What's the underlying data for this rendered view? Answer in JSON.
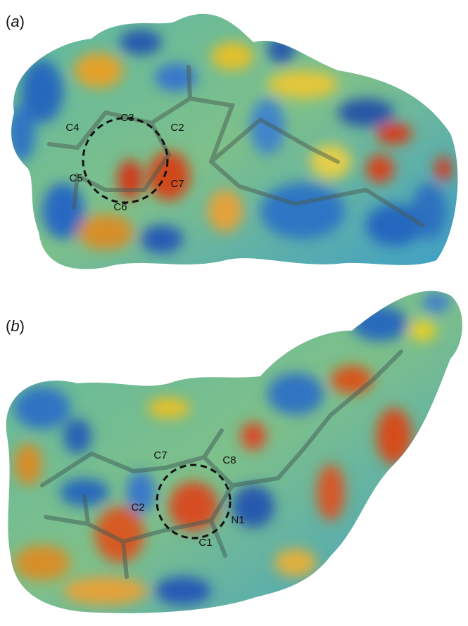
{
  "panels": [
    {
      "label_parts": [
        "(",
        "a",
        ")"
      ],
      "atoms": [
        "C3",
        "C4",
        "C2",
        "C5",
        "C7",
        "C6"
      ]
    },
    {
      "label_parts": [
        "(",
        "b",
        ")"
      ],
      "atoms": [
        "C7",
        "C8",
        "C2",
        "N1",
        "C1"
      ]
    }
  ]
}
